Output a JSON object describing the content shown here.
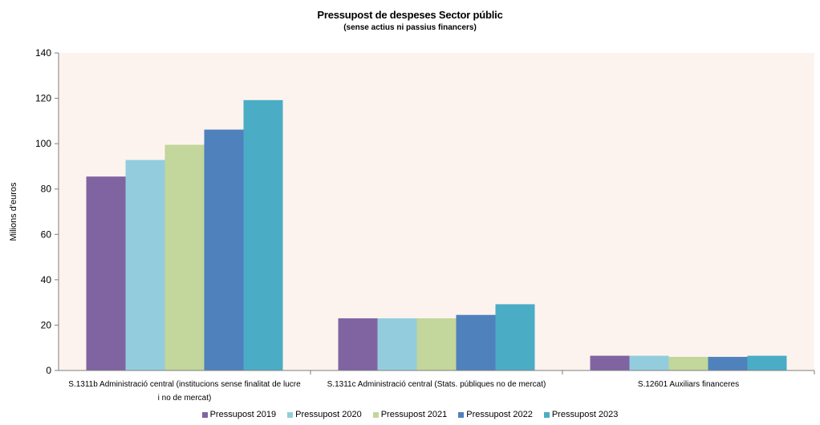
{
  "chart_data": {
    "type": "bar",
    "title": "Pressupost de despeses Sector públic",
    "subtitle": "(sense actius ni passius financers)",
    "ylabel": "Milions d'euros",
    "xlabel": "",
    "ylim": [
      0,
      140
    ],
    "yticks": [
      0,
      20,
      40,
      60,
      80,
      100,
      120,
      140
    ],
    "grid": false,
    "legend_position": "bottom",
    "background_color": "#fdf3ee",
    "categories": [
      "S.1311b Administració central (institucions sense finalitat de lucre i no de mercat)",
      "S.1311c Administració central (Stats. públiques no de mercat)",
      "S.12601 Auxiliars financeres"
    ],
    "series": [
      {
        "name": "Pressupost 2019",
        "color": "#8064a2",
        "values": [
          85.5,
          23.0,
          6.5
        ]
      },
      {
        "name": "Pressupost 2020",
        "color": "#93cddd",
        "values": [
          92.8,
          23.0,
          6.5
        ]
      },
      {
        "name": "Pressupost 2021",
        "color": "#c3d69b",
        "values": [
          99.5,
          23.0,
          6.0
        ]
      },
      {
        "name": "Pressupost 2022",
        "color": "#4f81bd",
        "values": [
          106.2,
          24.5,
          6.0
        ]
      },
      {
        "name": "Pressupost 2023",
        "color": "#4bacc6",
        "values": [
          119.2,
          29.2,
          6.5
        ]
      }
    ]
  }
}
